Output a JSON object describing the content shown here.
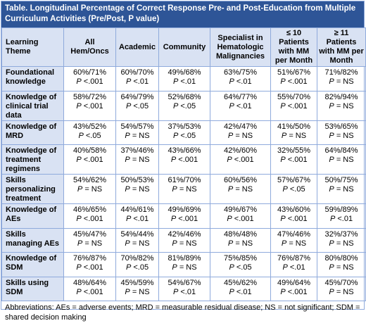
{
  "title": "Table. Longitudinal Percentage of Correct Response Pre- and Post-Education from Multiple Curriculum Activities (Pre/Post, P value)",
  "columns": [
    "Learning Theme",
    "All Hem/Oncs",
    "Academic",
    "Community",
    "Specialist in Hematologic Malignancies",
    "≤ 10 Patients with MM per Month",
    "≥ 11 Patients with MM per Month"
  ],
  "rows": [
    {
      "theme": "Foundational knowledge",
      "cells": [
        {
          "pct": "60%/71%",
          "p": "<.001"
        },
        {
          "pct": "60%/70%",
          "p": "<.01"
        },
        {
          "pct": "49%/68%",
          "p": "<.01"
        },
        {
          "pct": "63%/75%",
          "p": "<.01"
        },
        {
          "pct": "51%/67%",
          "p": "<.001"
        },
        {
          "pct": "71%/82%",
          "p": "= NS"
        }
      ]
    },
    {
      "theme": "Knowledge of clinical trial data",
      "cells": [
        {
          "pct": "58%/72%",
          "p": "<.001"
        },
        {
          "pct": "64%/79%",
          "p": "<.05"
        },
        {
          "pct": "52%/68%",
          "p": "<.05"
        },
        {
          "pct": "64%/77%",
          "p": "<.01"
        },
        {
          "pct": "55%/70%",
          "p": "<.001"
        },
        {
          "pct": "82%/94%",
          "p": "= NS"
        }
      ]
    },
    {
      "theme": "Knowledge of MRD",
      "cells": [
        {
          "pct": "43%/52%",
          "p": "<.05"
        },
        {
          "pct": "54%/57%",
          "p": "= NS"
        },
        {
          "pct": "37%/53%",
          "p": "<.05"
        },
        {
          "pct": "42%/47%",
          "p": "= NS"
        },
        {
          "pct": "41%/50%",
          "p": "= NS"
        },
        {
          "pct": "53%/65%",
          "p": "= NS"
        }
      ]
    },
    {
      "theme": "Knowledge of treatment regimens",
      "cells": [
        {
          "pct": "40%/58%",
          "p": "<.001"
        },
        {
          "pct": "37%/46%",
          "p": "= NS"
        },
        {
          "pct": "43%/66%",
          "p": "<.001"
        },
        {
          "pct": "42%/60%",
          "p": "<.001"
        },
        {
          "pct": "32%/55%",
          "p": "<.001"
        },
        {
          "pct": "64%/84%",
          "p": "= NS"
        }
      ]
    },
    {
      "theme": "Skills personalizing treatment",
      "cells": [
        {
          "pct": "54%/62%",
          "p": "= NS"
        },
        {
          "pct": "50%/53%",
          "p": "= NS"
        },
        {
          "pct": "61%/70%",
          "p": "= NS"
        },
        {
          "pct": "60%/56%",
          "p": "= NS"
        },
        {
          "pct": "57%/67%",
          "p": "<.05"
        },
        {
          "pct": "50%/75%",
          "p": "= NS"
        }
      ]
    },
    {
      "theme": "Knowledge of AEs",
      "cells": [
        {
          "pct": "46%/65%",
          "p": "<.001"
        },
        {
          "pct": "44%/61%",
          "p": "<.01"
        },
        {
          "pct": "49%/69%",
          "p": "<.001"
        },
        {
          "pct": "49%/67%",
          "p": "<.001"
        },
        {
          "pct": "43%/60%",
          "p": "<.001"
        },
        {
          "pct": "59%/89%",
          "p": "<.01"
        }
      ]
    },
    {
      "theme": "Skills managing AEs",
      "cells": [
        {
          "pct": "45%/47%",
          "p": "= NS"
        },
        {
          "pct": "54%/44%",
          "p": "= NS"
        },
        {
          "pct": "42%/46%",
          "p": "= NS"
        },
        {
          "pct": "48%/48%",
          "p": "= NS"
        },
        {
          "pct": "47%/46%",
          "p": "= NS"
        },
        {
          "pct": "32%/37%",
          "p": "= NS"
        }
      ]
    },
    {
      "theme": "Knowledge of SDM",
      "cells": [
        {
          "pct": "76%/87%",
          "p": "<.001"
        },
        {
          "pct": "70%/82%",
          "p": "<.05"
        },
        {
          "pct": "81%/89%",
          "p": "= NS"
        },
        {
          "pct": "75%/85%",
          "p": "<.05"
        },
        {
          "pct": "76%/87%",
          "p": "<.01"
        },
        {
          "pct": "80%/80%",
          "p": "= NS"
        }
      ]
    },
    {
      "theme": "Skills using SDM",
      "cells": [
        {
          "pct": "48%/64%",
          "p": "<.001"
        },
        {
          "pct": "45%/59%",
          "p": "= NS"
        },
        {
          "pct": "54%/67%",
          "p": "<.01"
        },
        {
          "pct": "45%/62%",
          "p": "<.01"
        },
        {
          "pct": "49%/64%",
          "p": "<.001"
        },
        {
          "pct": "45%/70%",
          "p": "= NS"
        }
      ]
    }
  ],
  "p_symbol": "P",
  "footer": "Abbreviations: AEs = adverse events; MRD = measurable residual disease; NS = not significant; SDM = shared decision making"
}
